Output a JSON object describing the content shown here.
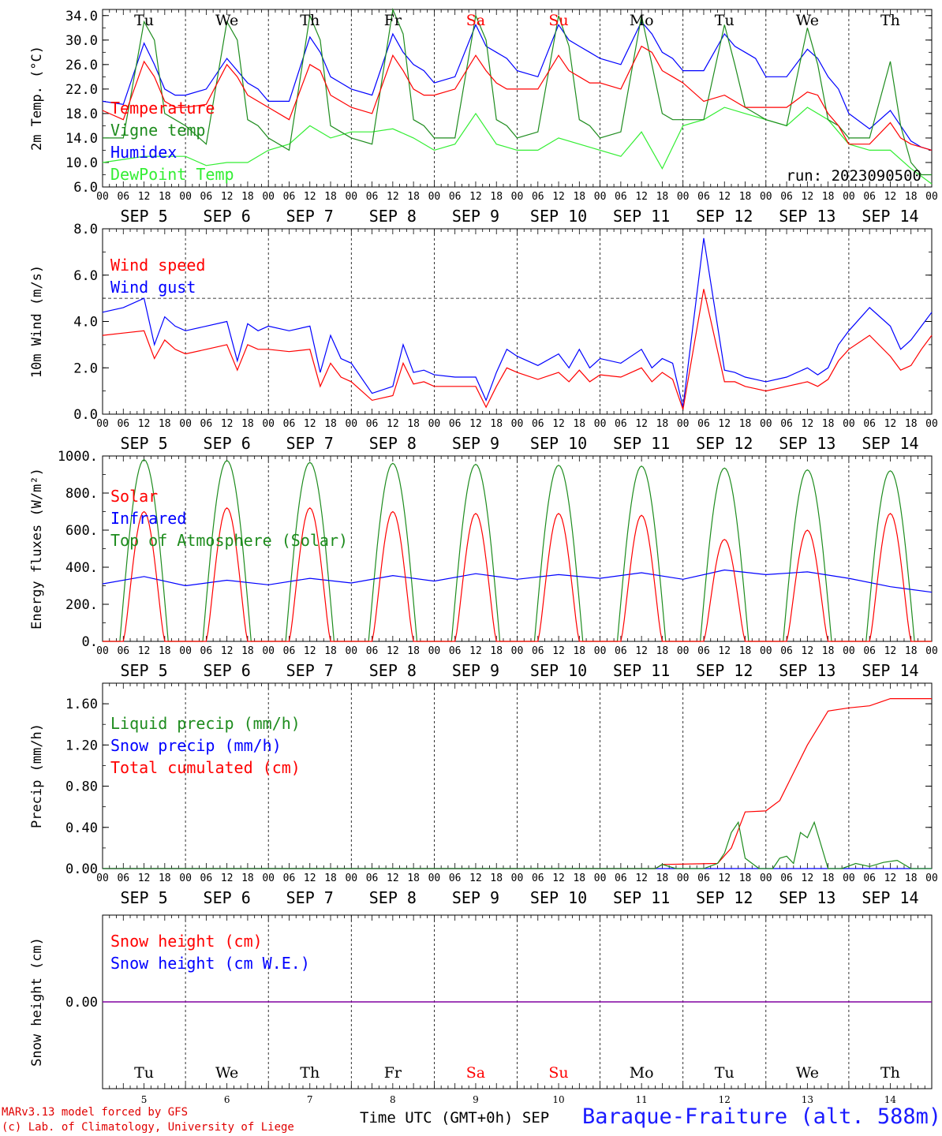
{
  "footer": {
    "model": "MARv3.13 model forced by GFS",
    "copyright": "(c) Lab. of Climatology, University of Liege",
    "time_axis": "Time UTC (GMT+0h)",
    "month": "SEP",
    "location": "Baraque-Fraiture (alt. 588m)"
  },
  "colors": {
    "red": "#ff0000",
    "green": "#1e8c1e",
    "blue": "#0000ff",
    "lime": "#33ee33",
    "purple": "#8000a0",
    "weekend": "#ff0000"
  },
  "days": [
    {
      "dow": "Tu",
      "label": "SEP  5",
      "num": "5",
      "weekend": false
    },
    {
      "dow": "We",
      "label": "SEP  6",
      "num": "6",
      "weekend": false
    },
    {
      "dow": "Th",
      "label": "SEP  7",
      "num": "7",
      "weekend": false
    },
    {
      "dow": "Fr",
      "label": "SEP  8",
      "num": "8",
      "weekend": false
    },
    {
      "dow": "Sa",
      "label": "SEP  9",
      "num": "9",
      "weekend": true
    },
    {
      "dow": "Su",
      "label": "SEP 10",
      "num": "10",
      "weekend": true
    },
    {
      "dow": "Mo",
      "label": "SEP 11",
      "num": "11",
      "weekend": false
    },
    {
      "dow": "Tu",
      "label": "SEP 12",
      "num": "12",
      "weekend": false
    },
    {
      "dow": "We",
      "label": "SEP 13",
      "num": "13",
      "weekend": false
    },
    {
      "dow": "Th",
      "label": "SEP 14",
      "num": "14",
      "weekend": false
    }
  ],
  "hour_labels": [
    "00",
    "06",
    "12",
    "18"
  ],
  "chart_data": [
    {
      "type": "line",
      "ylabel": "2m Temp. (°C)",
      "ylim": [
        6,
        35
      ],
      "yticks": [
        "6.0",
        "10.0",
        "14.0",
        "18.0",
        "22.0",
        "26.0",
        "30.0",
        "34.0"
      ],
      "annotation": "run: 2023090500",
      "x_unit": "hours since SEP 5 00 UTC",
      "series": [
        {
          "name": "Temperature",
          "color": "red",
          "x": [
            0,
            6,
            12,
            15,
            18,
            21,
            24,
            30,
            36,
            39,
            42,
            45,
            48,
            54,
            60,
            63,
            66,
            69,
            72,
            78,
            84,
            87,
            90,
            93,
            96,
            102,
            108,
            111,
            114,
            117,
            120,
            126,
            132,
            135,
            138,
            141,
            144,
            150,
            156,
            159,
            162,
            165,
            168,
            174,
            180,
            183,
            186,
            189,
            192,
            198,
            204,
            207,
            210,
            213,
            216,
            222,
            228,
            231,
            234,
            237,
            240
          ],
          "y": [
            18.5,
            17,
            26.5,
            24,
            20,
            19,
            19,
            19.5,
            26,
            24,
            21,
            20,
            19,
            17,
            26,
            25,
            21,
            20,
            19,
            18,
            27.5,
            25,
            22,
            21,
            21,
            22,
            27.5,
            25,
            23,
            22,
            22,
            22,
            27.5,
            25,
            24,
            23,
            23,
            22,
            29,
            28,
            25,
            24,
            23,
            20,
            21,
            20,
            19,
            19,
            19,
            19,
            21.5,
            21,
            18,
            16,
            13,
            13,
            16.5,
            14,
            13,
            12.5,
            12
          ]
        },
        {
          "name": "Vigne temp",
          "color": "green",
          "x": [
            0,
            6,
            12,
            15,
            18,
            21,
            24,
            30,
            36,
            39,
            42,
            45,
            48,
            54,
            60,
            63,
            66,
            69,
            72,
            78,
            84,
            87,
            90,
            93,
            96,
            102,
            108,
            111,
            114,
            117,
            120,
            126,
            132,
            135,
            138,
            141,
            144,
            150,
            156,
            159,
            162,
            165,
            168,
            174,
            180,
            183,
            186,
            189,
            192,
            198,
            204,
            207,
            210,
            213,
            216,
            222,
            228,
            231,
            234,
            237,
            240
          ],
          "y": [
            14,
            14,
            33,
            30,
            18,
            17,
            16,
            13,
            33,
            30,
            17,
            16,
            14,
            12,
            34,
            30,
            16,
            15,
            14,
            13,
            35,
            31,
            17,
            16,
            14,
            14,
            34,
            30,
            17,
            16,
            14,
            15,
            34,
            29,
            17,
            16,
            14,
            15,
            34,
            26,
            18,
            17,
            17,
            17,
            32.5,
            26,
            19,
            18,
            17,
            16,
            32,
            26,
            17,
            16,
            14,
            14,
            26.5,
            16,
            10,
            8,
            8
          ]
        },
        {
          "name": "Humidex",
          "color": "blue",
          "x": [
            0,
            6,
            12,
            15,
            18,
            21,
            24,
            30,
            36,
            39,
            42,
            45,
            48,
            54,
            60,
            63,
            66,
            69,
            72,
            78,
            84,
            87,
            90,
            93,
            96,
            102,
            108,
            111,
            114,
            117,
            120,
            126,
            132,
            135,
            138,
            141,
            144,
            150,
            156,
            159,
            162,
            165,
            168,
            174,
            180,
            183,
            186,
            189,
            192,
            198,
            204,
            207,
            210,
            213,
            216,
            222,
            228,
            231,
            234,
            237,
            240
          ],
          "y": [
            20,
            19.5,
            29.5,
            26,
            22,
            21,
            21,
            22,
            27,
            25,
            23,
            22,
            20,
            20,
            30.5,
            28,
            24,
            23,
            22,
            21,
            31,
            28,
            26,
            25,
            23,
            24,
            32.5,
            29,
            28,
            27,
            25,
            24,
            32.5,
            30,
            29,
            28,
            27,
            26,
            33,
            31,
            28,
            27,
            25,
            25,
            31,
            29,
            28,
            27,
            24,
            24,
            28.5,
            27,
            24,
            22,
            18,
            15.5,
            18.5,
            16,
            13.5,
            12.5,
            12
          ]
        },
        {
          "name": "DewPoint Temp",
          "color": "lime",
          "x": [
            0,
            6,
            12,
            18,
            24,
            30,
            36,
            42,
            48,
            54,
            60,
            66,
            72,
            78,
            84,
            90,
            96,
            102,
            108,
            114,
            120,
            126,
            132,
            138,
            144,
            150,
            156,
            162,
            168,
            174,
            180,
            186,
            192,
            198,
            204,
            210,
            216,
            222,
            228,
            234,
            240
          ],
          "y": [
            10,
            10.5,
            11,
            11,
            11,
            9.5,
            10,
            10,
            12,
            13,
            16,
            14,
            15,
            15,
            15.5,
            14,
            12,
            13,
            18,
            13,
            12,
            12,
            14,
            13,
            12,
            11,
            15,
            9,
            16,
            17,
            19,
            18,
            17,
            16,
            19,
            17,
            13,
            12,
            12,
            9,
            6.5
          ]
        }
      ]
    },
    {
      "type": "line",
      "ylabel": "10m Wind (m/s)",
      "ylim": [
        0,
        8
      ],
      "yticks": [
        "0.0",
        "2.0",
        "4.0",
        "6.0",
        "8.0"
      ],
      "reference_line": 5,
      "x_unit": "hours since SEP 5 00 UTC",
      "series": [
        {
          "name": "Wind speed",
          "color": "red",
          "x": [
            0,
            6,
            12,
            15,
            18,
            21,
            24,
            30,
            36,
            39,
            42,
            45,
            48,
            54,
            60,
            63,
            66,
            69,
            72,
            78,
            84,
            87,
            90,
            93,
            96,
            102,
            108,
            111,
            114,
            117,
            120,
            126,
            132,
            135,
            138,
            141,
            144,
            150,
            156,
            159,
            162,
            165,
            168,
            174,
            180,
            183,
            186,
            189,
            192,
            198,
            204,
            207,
            210,
            213,
            216,
            222,
            228,
            231,
            234,
            237,
            240
          ],
          "y": [
            3.4,
            3.5,
            3.6,
            2.4,
            3.2,
            2.8,
            2.6,
            2.8,
            3,
            1.9,
            3,
            2.8,
            2.8,
            2.7,
            2.8,
            1.2,
            2.2,
            1.6,
            1.4,
            0.6,
            0.8,
            2.2,
            1.3,
            1.4,
            1.2,
            1.2,
            1.2,
            0.3,
            1.2,
            2,
            1.8,
            1.5,
            1.8,
            1.4,
            1.9,
            1.4,
            1.7,
            1.6,
            2,
            1.4,
            1.8,
            1.5,
            0.2,
            5.4,
            1.4,
            1.4,
            1.2,
            1.1,
            1,
            1.2,
            1.4,
            1.2,
            1.5,
            2.3,
            2.8,
            3.4,
            2.5,
            1.9,
            2.1,
            2.8,
            3.4
          ]
        },
        {
          "name": "Wind gust",
          "color": "blue",
          "x": [
            0,
            6,
            12,
            15,
            18,
            21,
            24,
            30,
            36,
            39,
            42,
            45,
            48,
            54,
            60,
            63,
            66,
            69,
            72,
            78,
            84,
            87,
            90,
            93,
            96,
            102,
            108,
            111,
            114,
            117,
            120,
            126,
            132,
            135,
            138,
            141,
            144,
            150,
            156,
            159,
            162,
            165,
            168,
            174,
            180,
            183,
            186,
            189,
            192,
            198,
            204,
            207,
            210,
            213,
            216,
            222,
            228,
            231,
            234,
            237,
            240
          ],
          "y": [
            4.4,
            4.6,
            5,
            3,
            4.2,
            3.8,
            3.6,
            3.8,
            4,
            2.3,
            3.9,
            3.6,
            3.8,
            3.6,
            3.8,
            1.8,
            3.4,
            2.4,
            2.2,
            0.9,
            1.2,
            3,
            1.8,
            1.9,
            1.7,
            1.6,
            1.6,
            0.6,
            1.8,
            2.8,
            2.5,
            2.1,
            2.6,
            2,
            2.8,
            2,
            2.4,
            2.2,
            2.8,
            2,
            2.4,
            2.2,
            0.3,
            7.6,
            1.9,
            1.8,
            1.6,
            1.5,
            1.4,
            1.6,
            2,
            1.7,
            2,
            3,
            3.6,
            4.6,
            3.8,
            2.8,
            3.2,
            3.8,
            4.4
          ]
        }
      ]
    },
    {
      "type": "line",
      "ylabel": "Energy fluxes (W/m²)",
      "ylim": [
        0,
        1000
      ],
      "yticks": [
        "0.",
        "200.",
        "400.",
        "600.",
        "800.",
        "1000."
      ],
      "x_unit": "hours since SEP 5 00 UTC",
      "daily_peaks": {
        "solar": [
          700,
          720,
          720,
          700,
          690,
          690,
          680,
          550,
          600,
          690
        ],
        "top_of_atmosphere": [
          980,
          975,
          965,
          960,
          955,
          950,
          945,
          935,
          925,
          920
        ]
      },
      "series": [
        {
          "name": "Solar",
          "color": "red"
        },
        {
          "name": "Infrared",
          "color": "blue",
          "x": [
            0,
            12,
            24,
            36,
            48,
            60,
            72,
            84,
            96,
            108,
            120,
            132,
            144,
            156,
            168,
            180,
            192,
            204,
            216,
            228,
            240
          ],
          "y": [
            310,
            350,
            300,
            330,
            305,
            340,
            315,
            355,
            325,
            365,
            335,
            360,
            340,
            370,
            335,
            385,
            360,
            375,
            340,
            295,
            265
          ]
        },
        {
          "name": "Top of Atmosphere (Solar)",
          "color": "green"
        }
      ]
    },
    {
      "type": "line",
      "ylabel": "Precip (mm/h)",
      "ylim": [
        0,
        1.8
      ],
      "yticks": [
        "0.00",
        "0.40",
        "0.80",
        "1.20",
        "1.60"
      ],
      "x_unit": "hours since SEP 5 00 UTC",
      "series": [
        {
          "name": "Liquid precip (mm/h)",
          "color": "green",
          "x": [
            0,
            160,
            162,
            164,
            166,
            170,
            174,
            178,
            180,
            182,
            184,
            186,
            190,
            194,
            196,
            198,
            200,
            202,
            204,
            206,
            210,
            214,
            218,
            222,
            226,
            230,
            234,
            240
          ],
          "y": [
            0,
            0,
            0.04,
            0.02,
            0,
            0,
            0,
            0.05,
            0.15,
            0.35,
            0.45,
            0.1,
            0,
            0,
            0.1,
            0.12,
            0.05,
            0.35,
            0.3,
            0.45,
            0,
            0,
            0.05,
            0.02,
            0.06,
            0.08,
            0,
            0
          ]
        },
        {
          "name": "Snow precip (mm/h)",
          "color": "blue",
          "x": [
            0,
            240
          ],
          "y": [
            0,
            0
          ]
        },
        {
          "name": "Total cumulated (cm)",
          "color": "red",
          "x": [
            0,
            160,
            162,
            178,
            182,
            186,
            192,
            196,
            200,
            204,
            210,
            216,
            222,
            228,
            240
          ],
          "y": [
            0,
            0,
            0.04,
            0.05,
            0.2,
            0.55,
            0.56,
            0.66,
            0.93,
            1.2,
            1.53,
            1.56,
            1.58,
            1.65,
            1.65
          ]
        }
      ]
    },
    {
      "type": "line",
      "ylabel": "Snow height (cm)",
      "yticks": [
        "0.00"
      ],
      "x_unit": "hours since SEP 5 00 UTC",
      "series": [
        {
          "name": "Snow height (cm)",
          "color": "red",
          "x": [
            0,
            240
          ],
          "y": [
            0,
            0
          ]
        },
        {
          "name": "Snow height (cm W.E.)",
          "color": "blue",
          "x": [
            0,
            240
          ],
          "y": [
            0,
            0
          ]
        }
      ]
    }
  ]
}
